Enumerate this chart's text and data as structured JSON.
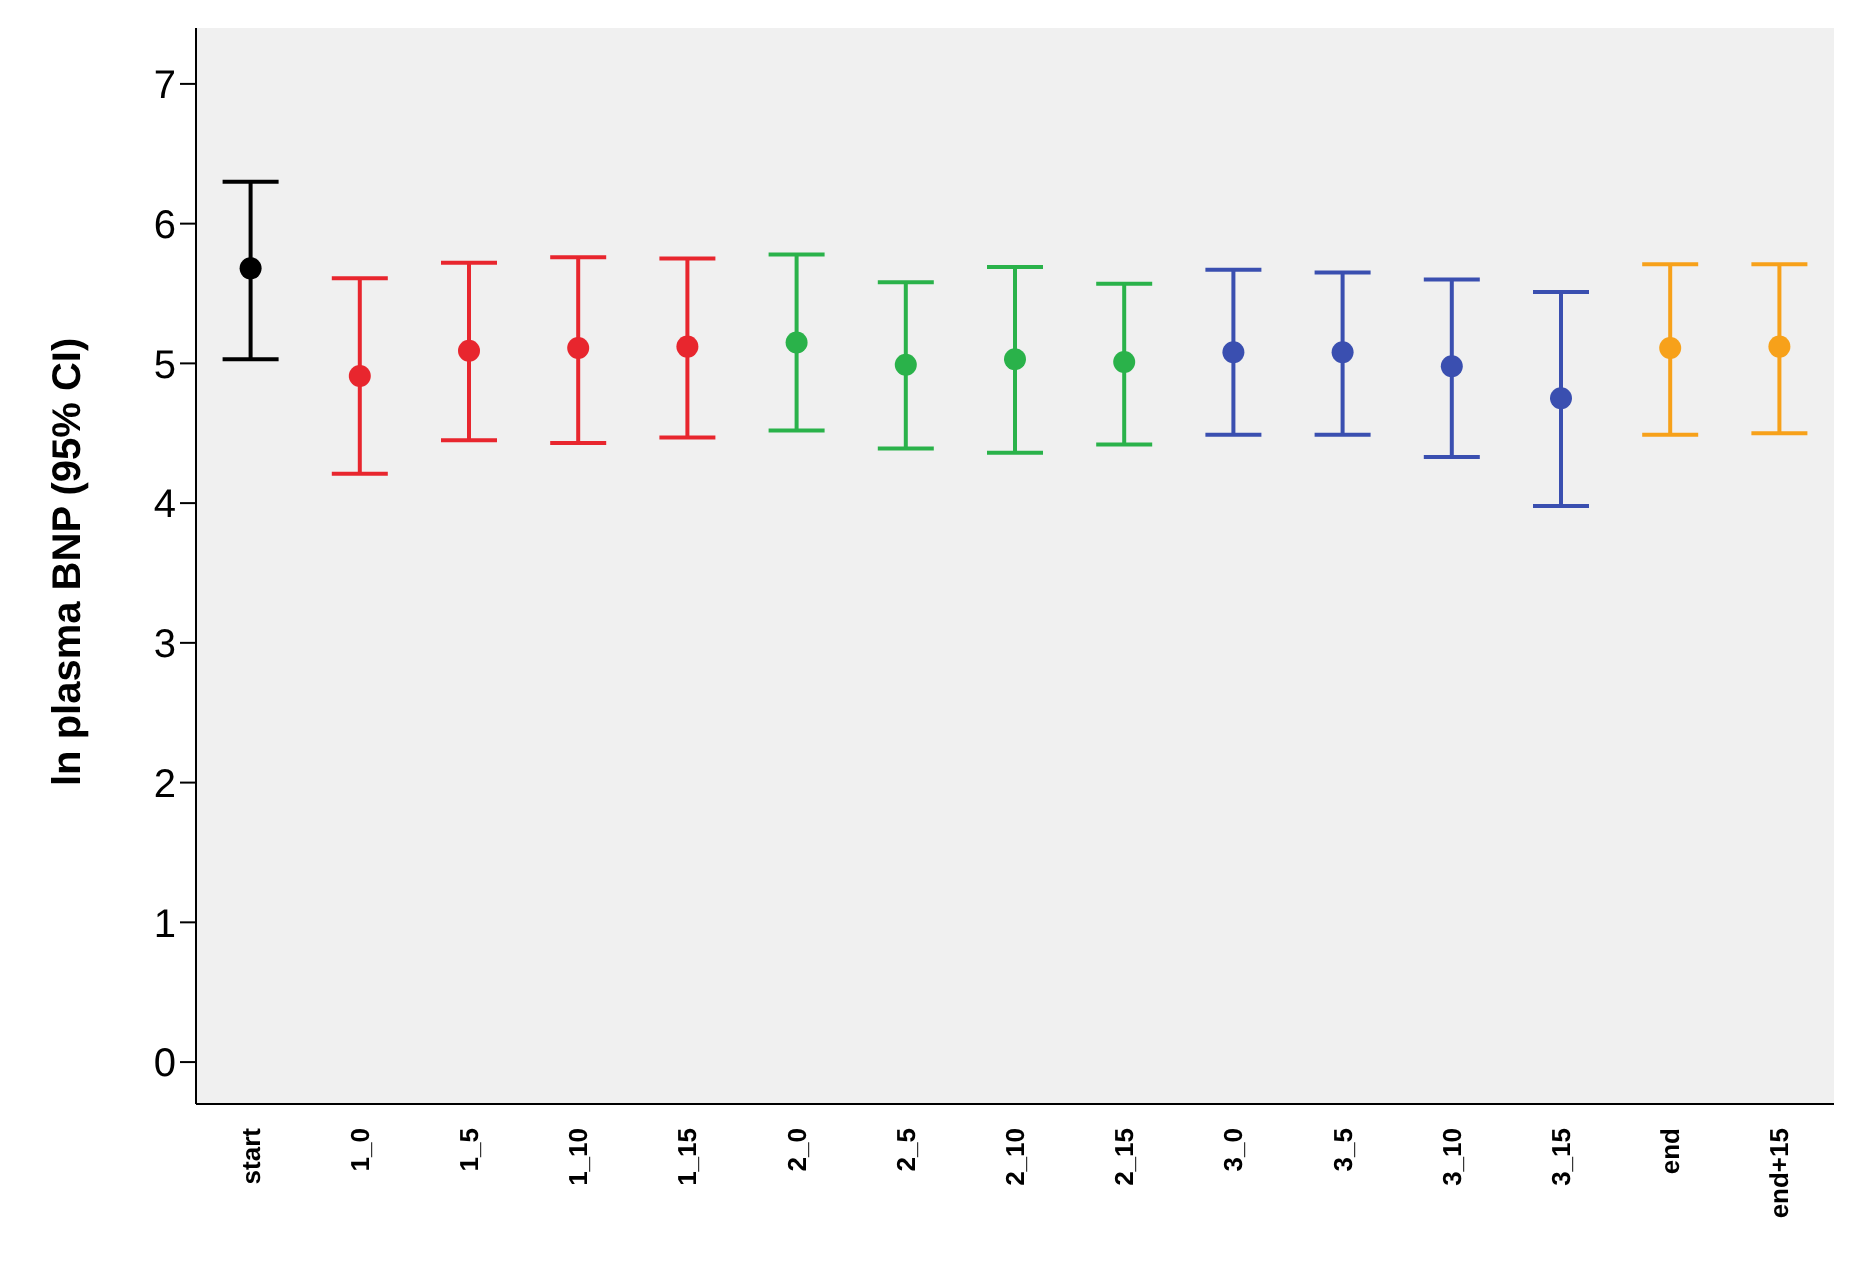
{
  "chart_data": {
    "type": "scatter",
    "ylabel": "ln plasma BNP (95% CI)",
    "categories": [
      "start",
      "1_0",
      "1_5",
      "1_10",
      "1_15",
      "2_0",
      "2_5",
      "2_10",
      "2_15",
      "3_0",
      "3_5",
      "3_10",
      "3_15",
      "end",
      "end+15"
    ],
    "values": [
      5.68,
      4.91,
      5.09,
      5.11,
      5.12,
      5.15,
      4.99,
      5.03,
      5.01,
      5.08,
      5.08,
      4.98,
      4.75,
      5.11,
      5.12
    ],
    "errors": [
      [
        5.03,
        6.3
      ],
      [
        4.21,
        5.61
      ],
      [
        4.45,
        5.72
      ],
      [
        4.43,
        5.76
      ],
      [
        4.47,
        5.75
      ],
      [
        4.52,
        5.78
      ],
      [
        4.39,
        5.58
      ],
      [
        4.36,
        5.69
      ],
      [
        4.42,
        5.57
      ],
      [
        4.49,
        5.67
      ],
      [
        4.49,
        5.65
      ],
      [
        4.33,
        5.6
      ],
      [
        3.98,
        5.51
      ],
      [
        4.49,
        5.71
      ],
      [
        4.5,
        5.71
      ]
    ],
    "colors": [
      "#000000",
      "#e8262e",
      "#e8262e",
      "#e8262e",
      "#e8262e",
      "#2ab24a",
      "#2ab24a",
      "#2ab24a",
      "#2ab24a",
      "#3a4fb0",
      "#3a4fb0",
      "#3a4fb0",
      "#3a4fb0",
      "#f7a11a",
      "#f7a11a"
    ],
    "ylim": [
      -0.3,
      7.4
    ],
    "yticks": [
      0,
      1,
      2,
      3,
      4,
      5,
      6,
      7
    ],
    "grid": false,
    "marker": "circle",
    "legend": false
  }
}
